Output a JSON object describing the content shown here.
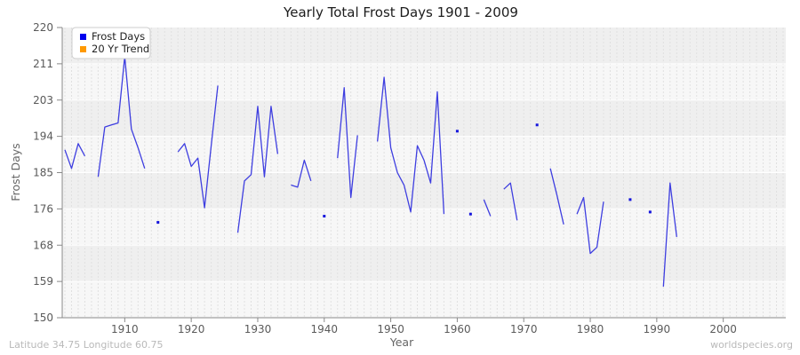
{
  "title": "Yearly Total Frost Days 1901 - 2009",
  "footer": {
    "left": "Latitude 34.75 Longitude 60.75",
    "right": "worldspecies.org"
  },
  "colors": {
    "line": "#3e3ee0",
    "marker": "#1515dd",
    "band_dark": "#efefef",
    "band_light": "#f7f7f7",
    "grid_vertical": "#e0e0e0",
    "grid_horizontal": "#ffffff",
    "axis": "#888888",
    "legend_border": "#cccccc",
    "legend_bg": "#ffffff"
  },
  "chart_data": {
    "type": "line",
    "title": "Yearly Total Frost Days 1901 - 2009",
    "xlabel": "Year",
    "ylabel": "Frost Days",
    "x_range": [
      1901,
      2009
    ],
    "ylim": [
      150,
      220
    ],
    "y_ticks": [
      220,
      211,
      203,
      194,
      185,
      176,
      168,
      159,
      150
    ],
    "x_ticks": [
      1910,
      1920,
      1930,
      1940,
      1950,
      1960,
      1970,
      1980,
      1990,
      2000
    ],
    "grid": "yearly dashed vertical lines, white horizontal lines at ticks, alternating bands",
    "legend_position": "top-left",
    "legend": [
      {
        "label": "Frost Days",
        "color": "#0000ee"
      },
      {
        "label": "20 Yr Trend",
        "color": "#ff9900"
      }
    ],
    "series": [
      {
        "name": "Frost Days",
        "color": "#3e3ee0",
        "points": [
          [
            1901,
            190.5
          ],
          [
            1902,
            186
          ],
          [
            1903,
            192
          ],
          [
            1904,
            189
          ],
          [
            1905,
            null
          ],
          [
            1906,
            184
          ],
          [
            1907,
            196
          ],
          [
            1908,
            196.5
          ],
          [
            1909,
            197
          ],
          [
            1910,
            213
          ],
          [
            1911,
            195.5
          ],
          [
            1912,
            191
          ],
          [
            1913,
            186
          ],
          [
            1914,
            null
          ],
          [
            1915,
            173
          ],
          [
            1916,
            null
          ],
          [
            1917,
            null
          ],
          [
            1918,
            190
          ],
          [
            1919,
            192
          ],
          [
            1920,
            186.5
          ],
          [
            1921,
            188.5
          ],
          [
            1922,
            176.5
          ],
          [
            1923,
            191.5
          ],
          [
            1924,
            206
          ],
          [
            1925,
            null
          ],
          [
            1926,
            null
          ],
          [
            1927,
            170.5
          ],
          [
            1928,
            183
          ],
          [
            1929,
            184.5
          ],
          [
            1930,
            201
          ],
          [
            1931,
            184
          ],
          [
            1932,
            201
          ],
          [
            1933,
            189.5
          ],
          [
            1934,
            null
          ],
          [
            1935,
            182
          ],
          [
            1936,
            181.5
          ],
          [
            1937,
            188
          ],
          [
            1938,
            183
          ],
          [
            1939,
            null
          ],
          [
            1940,
            174.5
          ],
          [
            1941,
            null
          ],
          [
            1942,
            188.5
          ],
          [
            1943,
            205.5
          ],
          [
            1944,
            179
          ],
          [
            1945,
            194
          ],
          [
            1946,
            null
          ],
          [
            1947,
            null
          ],
          [
            1948,
            192.5
          ],
          [
            1949,
            208
          ],
          [
            1950,
            191
          ],
          [
            1951,
            185
          ],
          [
            1952,
            182
          ],
          [
            1953,
            175.5
          ],
          [
            1954,
            191.5
          ],
          [
            1955,
            188
          ],
          [
            1956,
            182.5
          ],
          [
            1957,
            204.5
          ],
          [
            1958,
            175
          ],
          [
            1959,
            null
          ],
          [
            1960,
            195
          ],
          [
            1961,
            null
          ],
          [
            1962,
            175
          ],
          [
            1963,
            null
          ],
          [
            1964,
            178.5
          ],
          [
            1965,
            174.5
          ],
          [
            1966,
            null
          ],
          [
            1967,
            181
          ],
          [
            1968,
            182.5
          ],
          [
            1969,
            173.5
          ],
          [
            1970,
            null
          ],
          [
            1971,
            null
          ],
          [
            1972,
            196.5
          ],
          [
            1973,
            null
          ],
          [
            1974,
            186
          ],
          [
            1975,
            179.5
          ],
          [
            1976,
            172.5
          ],
          [
            1977,
            null
          ],
          [
            1978,
            175
          ],
          [
            1979,
            179
          ],
          [
            1980,
            165.5
          ],
          [
            1981,
            167
          ],
          [
            1982,
            178
          ],
          [
            1983,
            null
          ],
          [
            1984,
            null
          ],
          [
            1985,
            null
          ],
          [
            1986,
            178.5
          ],
          [
            1987,
            null
          ],
          [
            1988,
            null
          ],
          [
            1989,
            175.5
          ],
          [
            1990,
            null
          ],
          [
            1991,
            157.5
          ],
          [
            1992,
            182.5
          ],
          [
            1993,
            169.5
          ],
          [
            1994,
            null
          ],
          [
            1995,
            null
          ],
          [
            1996,
            null
          ],
          [
            1997,
            null
          ],
          [
            1998,
            null
          ],
          [
            1999,
            null
          ],
          [
            2000,
            null
          ],
          [
            2001,
            null
          ],
          [
            2002,
            null
          ],
          [
            2003,
            null
          ],
          [
            2004,
            null
          ],
          [
            2005,
            null
          ],
          [
            2006,
            null
          ],
          [
            2007,
            null
          ],
          [
            2008,
            null
          ],
          [
            2009,
            null
          ]
        ]
      },
      {
        "name": "20 Yr Trend",
        "color": "#ff9900",
        "points": []
      }
    ]
  }
}
